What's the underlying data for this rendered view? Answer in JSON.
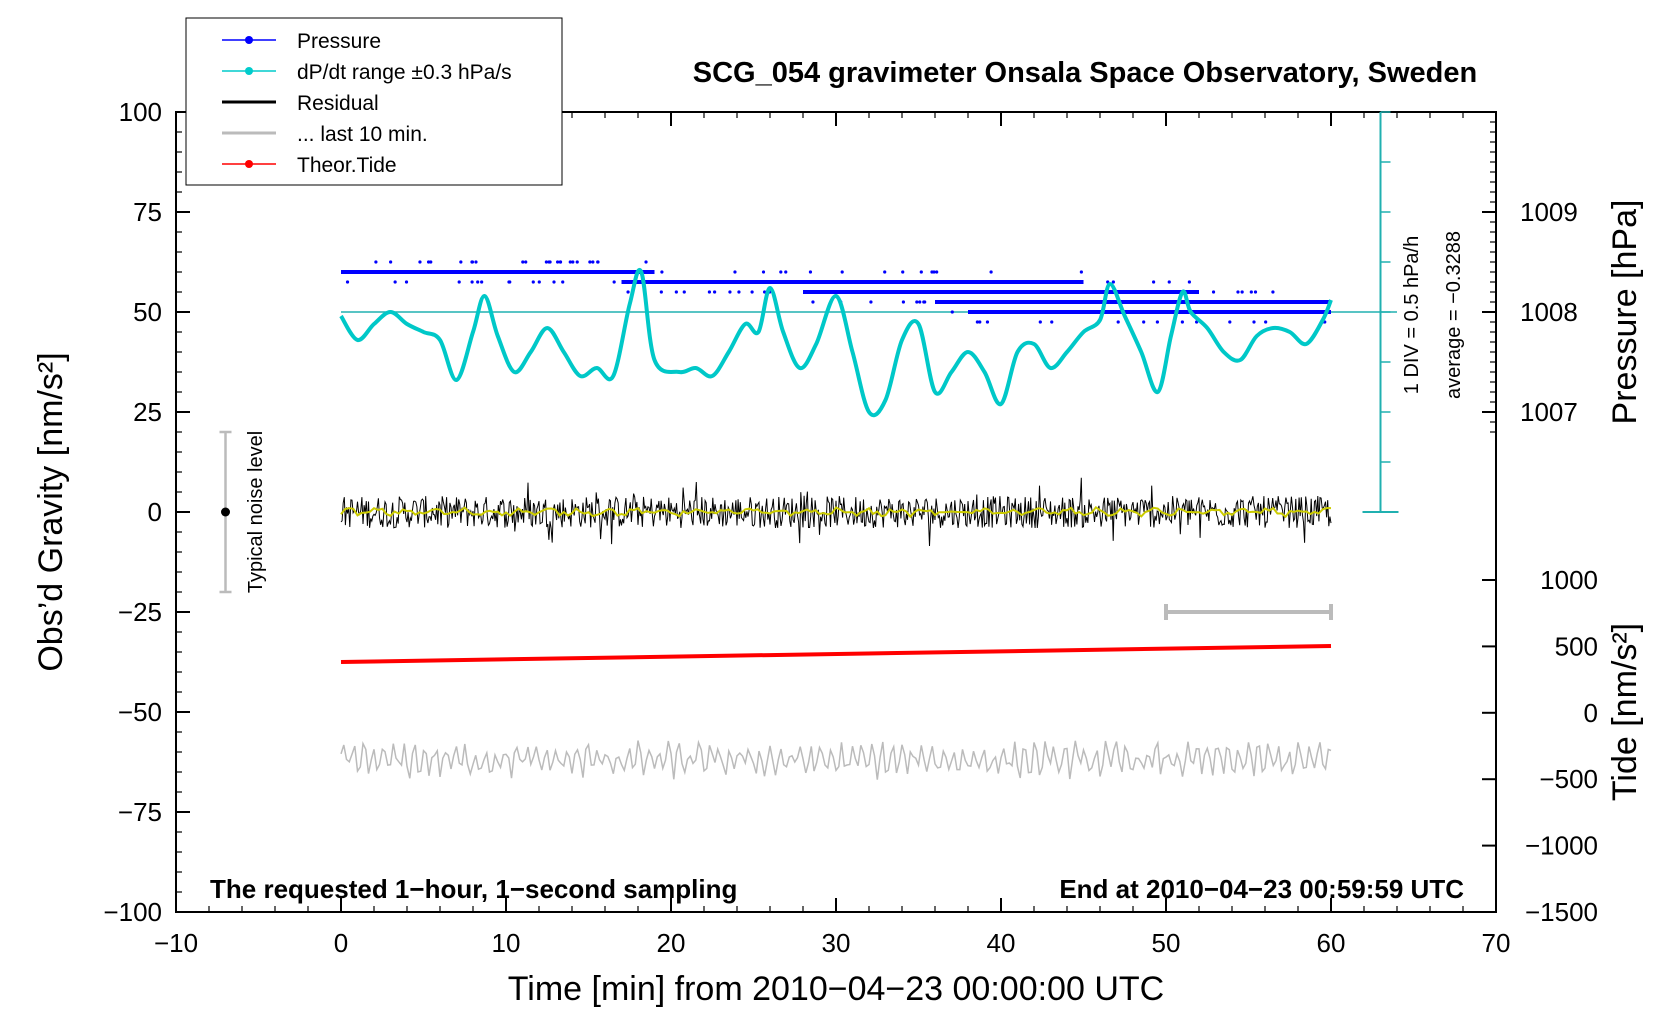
{
  "chart_data": {
    "type": "line",
    "title": "SCG_054 gravimeter Onsala Space Observatory, Sweden",
    "xlabel": "Time [min] from 2010−04−23 00:00:00 UTC",
    "ylabel_left": "Obs’d Gravity [nm/s²]",
    "ylabel_right_top": "Pressure [hPa]",
    "ylabel_right_bottom": "Tide [nm/s²]",
    "xlim": [
      -10,
      70
    ],
    "ylim": [
      -100,
      100
    ],
    "x_ticks": [
      "−10",
      "0",
      "10",
      "20",
      "30",
      "40",
      "50",
      "60",
      "70"
    ],
    "x_tick_values": [
      -10,
      0,
      10,
      20,
      30,
      40,
      50,
      60,
      70
    ],
    "y_ticks": [
      "100",
      "75",
      "50",
      "25",
      "0",
      "−25",
      "−50",
      "−75",
      "−100"
    ],
    "y_tick_values": [
      100,
      75,
      50,
      25,
      0,
      -25,
      -50,
      -75,
      -100
    ],
    "pressure_axis": {
      "ticks": [
        "1009",
        "1008",
        "1007"
      ],
      "tick_values": [
        1009,
        1008,
        1007
      ],
      "center_hpa": 1008,
      "gravity_units_per_hpa": 25
    },
    "tide_axis": {
      "ticks": [
        "1000",
        "500",
        "0",
        "−500",
        "−1000",
        "−1500"
      ],
      "tick_values": [
        1000,
        500,
        0,
        -500,
        -1000,
        -1500
      ],
      "range": [
        -1500,
        1000
      ]
    },
    "dpdt_scale": {
      "label_div": "1 DIV = 0.5 hPa/h",
      "label_avg": "average = −0.3288",
      "x_min": 63,
      "y_top": 100,
      "y_bottom": 0,
      "baseline": 50
    },
    "legend": {
      "position": "top-left",
      "entries": [
        {
          "label": "Pressure",
          "color": "#0000ff",
          "marker": "dot"
        },
        {
          "label": "dP/dt range ±0.3 hPa/s",
          "color": "#00cccc",
          "marker": "dot"
        },
        {
          "label": "Residual",
          "color": "#000000",
          "marker": "line"
        },
        {
          "label": "... last 10 min.",
          "color": "#bbbbbb",
          "marker": "line"
        },
        {
          "label": "Theor.Tide",
          "color": "#ff0000",
          "marker": "dot"
        }
      ]
    },
    "noise_bar": {
      "label": "Typical noise level",
      "x_min": -7,
      "center": 0,
      "half_range": 20
    },
    "last10_bracket": {
      "x_start": 50,
      "x_end": 60,
      "y": -25
    },
    "annotation_left": "The requested 1−hour, 1−second sampling",
    "annotation_right": "End at 2010−04−23 00:59:59 UTC",
    "series": [
      {
        "name": "Pressure",
        "color": "#0000ff",
        "steps": [
          {
            "x_start": 0,
            "x_end": 19,
            "y": 60
          },
          {
            "x_start": 17,
            "x_end": 45,
            "y": 57.5
          },
          {
            "x_start": 28,
            "x_end": 52,
            "y": 55
          },
          {
            "x_start": 36,
            "x_end": 60,
            "y": 52.5
          },
          {
            "x_start": 38,
            "x_end": 60,
            "y": 50
          }
        ]
      },
      {
        "name": "dP/dt",
        "color": "#00c8c8",
        "x": [
          0,
          1,
          2,
          3,
          4,
          5,
          6,
          7,
          8,
          8.7,
          9.5,
          10.5,
          11.5,
          12.5,
          13.5,
          14.5,
          15.5,
          16.5,
          17.5,
          18.2,
          19,
          20.5,
          21.5,
          22.5,
          23.5,
          24.5,
          25.3,
          26,
          26.8,
          27.8,
          28.8,
          30,
          31,
          32,
          33,
          34,
          35,
          36,
          37,
          38,
          39,
          40,
          41,
          42,
          43,
          44,
          45,
          46,
          46.6,
          47.5,
          48.5,
          49.5,
          50.3,
          51,
          51.5,
          52.5,
          53.5,
          54.5,
          55.5,
          56.5,
          57.5,
          58.5,
          59.5,
          60
        ],
        "y": [
          49,
          43,
          47,
          50,
          47,
          45,
          43,
          33,
          45,
          54,
          44,
          35,
          40,
          46,
          40,
          34,
          36,
          34,
          52,
          60,
          38,
          35,
          36,
          34,
          40,
          47,
          45,
          56,
          45,
          36,
          42,
          54,
          40,
          25,
          28,
          43,
          47,
          30,
          35,
          40,
          35,
          27,
          40,
          42,
          36,
          40,
          45,
          48,
          57,
          49,
          40,
          30,
          44,
          55,
          50,
          46,
          40,
          38,
          44,
          46,
          45,
          42,
          48,
          53
        ]
      },
      {
        "name": "Residual",
        "color": "#000000",
        "noise_amplitude": 4,
        "x_range": [
          0,
          60
        ],
        "center": 0
      },
      {
        "name": "Residual smoothed",
        "color": "#cccc00",
        "center": 0,
        "x_range": [
          0,
          60
        ]
      },
      {
        "name": "Theor.Tide",
        "color": "#ff0000",
        "x": [
          0,
          60
        ],
        "y": [
          -37.5,
          -33.5
        ]
      },
      {
        "name": "... last 10 min.",
        "color": "#bbbbbb",
        "x_range": [
          0,
          60
        ],
        "center": -62,
        "amplitude": 4
      }
    ]
  }
}
